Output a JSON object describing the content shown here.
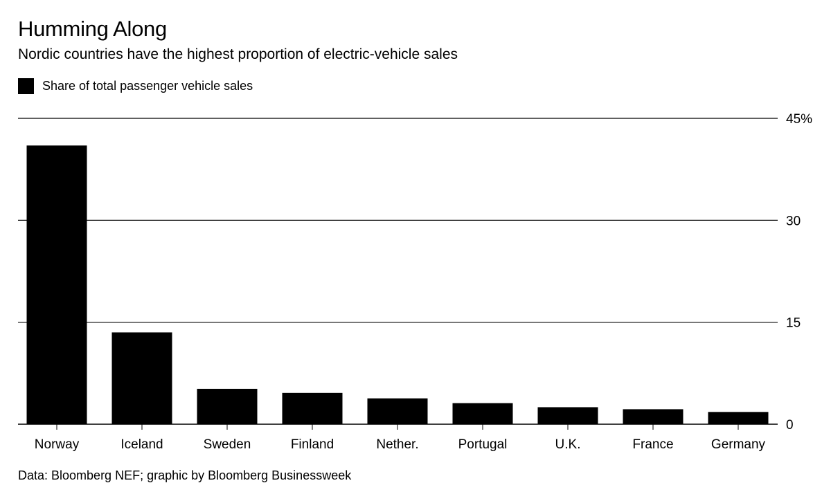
{
  "chart_data": {
    "type": "bar",
    "title": "Humming Along",
    "subtitle": "Nordic countries have the highest proportion of electric-vehicle sales",
    "series": [
      {
        "name": "Share of total passenger vehicle sales",
        "values": [
          41,
          13.5,
          5.2,
          4.6,
          3.8,
          3.1,
          2.5,
          2.2,
          1.8
        ]
      }
    ],
    "categories": [
      "Norway",
      "Iceland",
      "Sweden",
      "Finland",
      "Nether.",
      "Portugal",
      "U.K.",
      "France",
      "Germany"
    ],
    "yticks": [
      "0",
      "15",
      "30",
      "45%"
    ],
    "ytick_values": [
      0,
      15,
      30,
      45
    ],
    "ylim": [
      0,
      45
    ],
    "grid": true,
    "y_axis_side": "right",
    "legend_position": "top-left",
    "bar_color": "#000000",
    "source": "Data: Bloomberg NEF; graphic by Bloomberg Businessweek"
  }
}
